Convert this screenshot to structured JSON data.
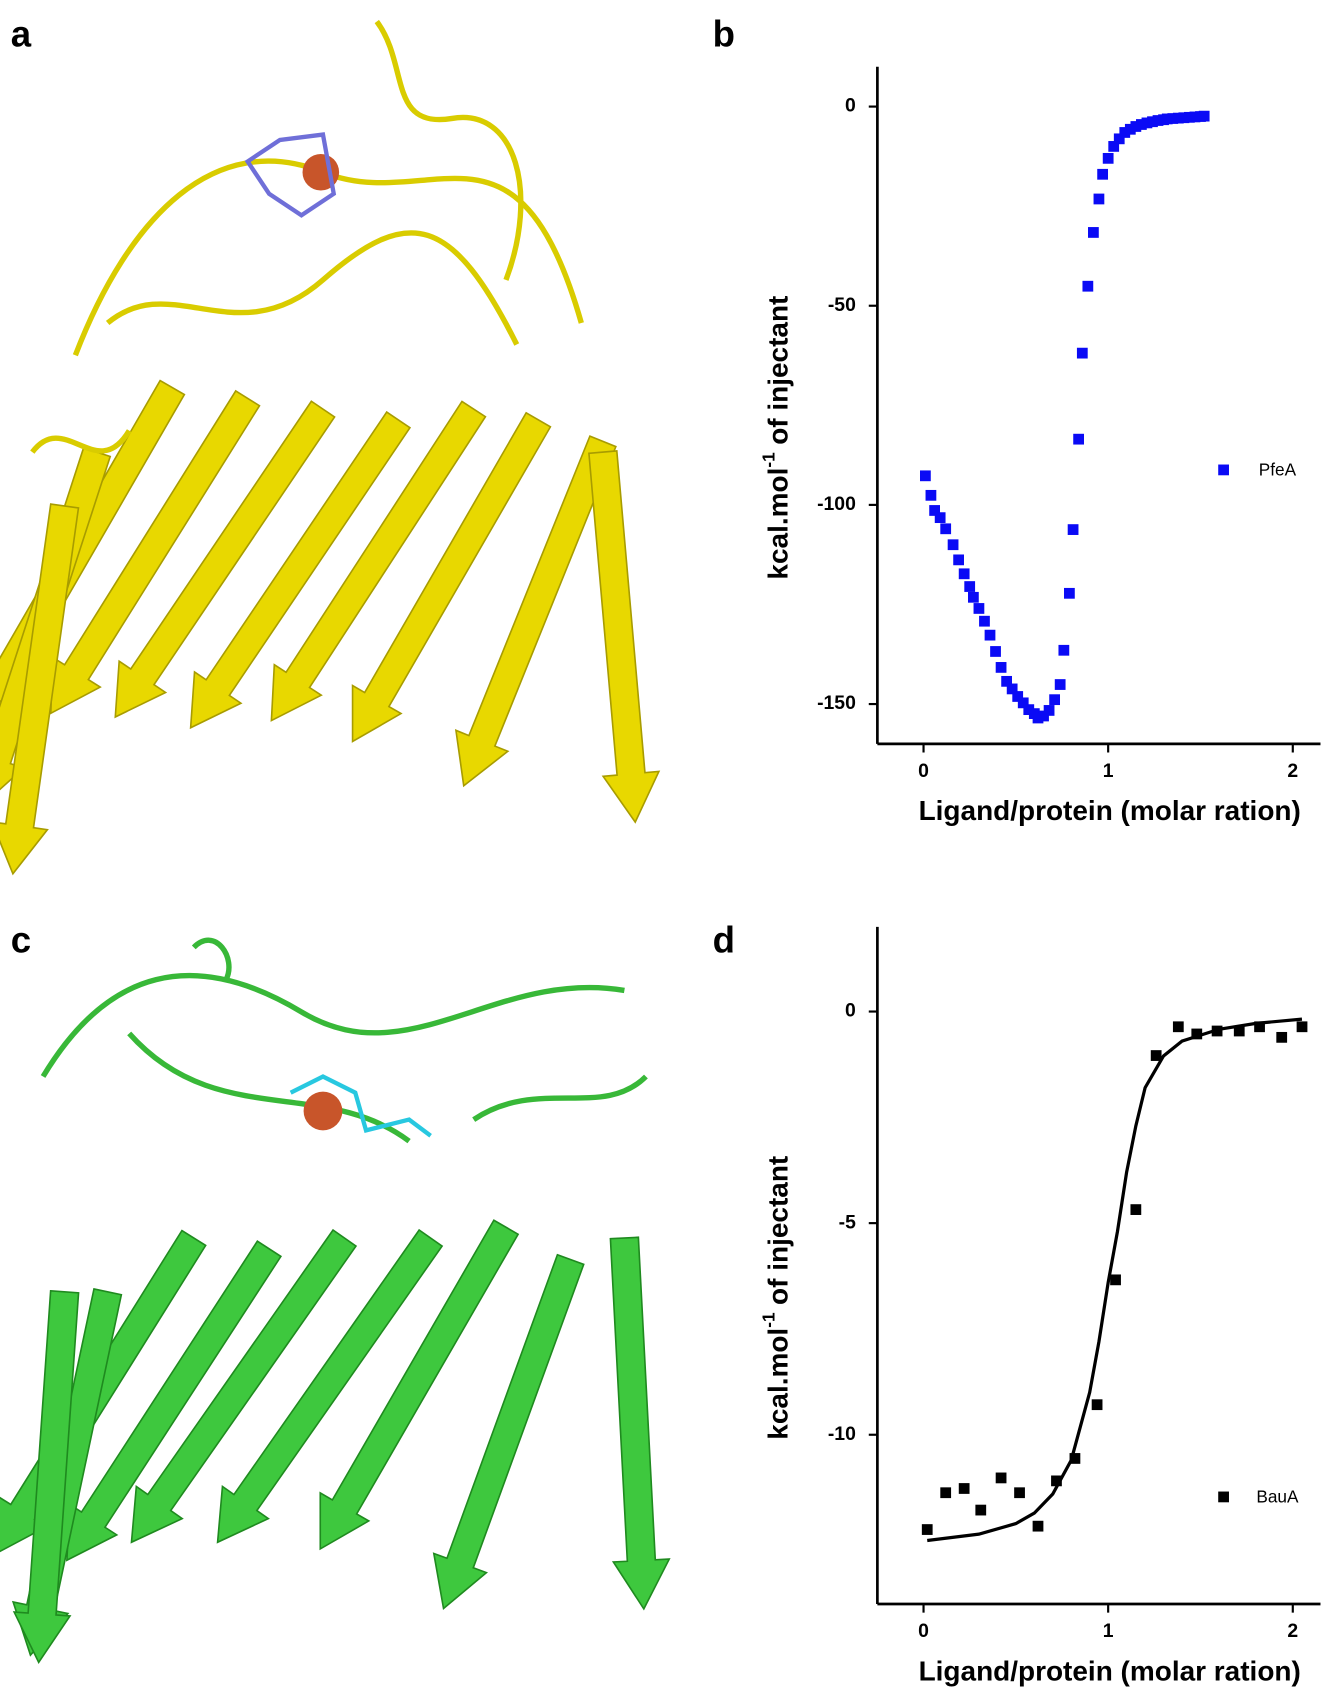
{
  "panels": [
    {
      "label": "a"
    },
    {
      "label": "b"
    },
    {
      "label": "c"
    },
    {
      "label": "d"
    }
  ],
  "chart_data": [
    {
      "type": "scatter",
      "xlabel": "Ligand/protein (molar ration)",
      "ylabel": {
        "text": "kcal.mol",
        "sup": "-1",
        "rest": "of injectant"
      },
      "xlim": [
        -0.25,
        2.15
      ],
      "xticks": [
        0,
        1,
        2
      ],
      "ylim": [
        -160,
        10
      ],
      "yticks": [
        0,
        -50,
        -100,
        -150
      ],
      "legend": "right",
      "series": [
        {
          "name": "PfeA",
          "color": "#0a0af5",
          "kind": "points",
          "x": [
            0.01,
            0.04,
            0.06,
            0.09,
            0.12,
            0.16,
            0.19,
            0.22,
            0.25,
            0.27,
            0.3,
            0.33,
            0.36,
            0.39,
            0.42,
            0.45,
            0.48,
            0.51,
            0.54,
            0.57,
            0.6,
            0.62,
            0.65,
            0.68,
            0.71,
            0.74,
            0.76,
            0.79,
            0.81,
            0.84,
            0.86,
            0.89,
            0.92,
            0.95,
            0.97,
            1.0,
            1.03,
            1.06,
            1.09,
            1.12,
            1.15,
            1.18,
            1.21,
            1.24,
            1.27,
            1.3,
            1.32,
            1.35,
            1.38,
            1.41,
            1.44,
            1.47,
            1.5,
            1.52
          ],
          "values": [
            -92.7,
            -97.6,
            -101.4,
            -103.2,
            -106,
            -110,
            -113.8,
            -117.3,
            -120.5,
            -123.2,
            -126,
            -129.2,
            -132.7,
            -136.8,
            -140.8,
            -144.3,
            -146.2,
            -148.1,
            -149.7,
            -151.4,
            -152.4,
            -153.5,
            -153,
            -151.6,
            -148.9,
            -145.1,
            -136.5,
            -122.2,
            -106.2,
            -83.5,
            -61.9,
            -45.1,
            -31.6,
            -23.2,
            -17,
            -13,
            -10,
            -8.1,
            -6.5,
            -5.7,
            -5,
            -4.5,
            -4.1,
            -3.8,
            -3.5,
            -3.3,
            -3.1,
            -3,
            -2.9,
            -2.8,
            -2.7,
            -2.6,
            -2.5,
            -2.4
          ]
        }
      ]
    },
    {
      "type": "scatter",
      "xlabel": "Ligand/protein (molar ration)",
      "ylabel": {
        "text": "kcal.mol",
        "sup": "-1",
        "rest": "of injectant"
      },
      "xlim": [
        -0.25,
        2.15
      ],
      "xticks": [
        0,
        1,
        2
      ],
      "ylim": [
        -14,
        2
      ],
      "yticks": [
        0,
        -5,
        -10
      ],
      "legend": "right",
      "series": [
        {
          "name": "BauA",
          "color": "#000000",
          "kind": "points",
          "x": [
            0.02,
            0.12,
            0.22,
            0.31,
            0.42,
            0.52,
            0.62,
            0.72,
            0.82,
            0.94,
            1.04,
            1.15,
            1.26,
            1.38,
            1.48,
            1.59,
            1.71,
            1.82,
            1.94,
            2.05
          ],
          "values": [
            -12.24,
            -11.37,
            -11.27,
            -11.78,
            -11.02,
            -11.37,
            -12.16,
            -11.09,
            -10.56,
            -9.29,
            -6.34,
            -4.68,
            -1.04,
            -0.36,
            -0.53,
            -0.46,
            -0.46,
            -0.36,
            -0.61,
            -0.36
          ]
        },
        {
          "color": "#000000",
          "kind": "line",
          "x": [
            0.02,
            0.3,
            0.5,
            0.6,
            0.7,
            0.8,
            0.9,
            0.95,
            1.0,
            1.05,
            1.1,
            1.15,
            1.2,
            1.3,
            1.4,
            1.6,
            1.8,
            2.05
          ],
          "values": [
            -12.5,
            -12.35,
            -12.1,
            -11.85,
            -11.4,
            -10.6,
            -9.0,
            -7.8,
            -6.4,
            -5.2,
            -3.8,
            -2.7,
            -1.8,
            -1.05,
            -0.7,
            -0.42,
            -0.28,
            -0.18
          ]
        }
      ]
    }
  ]
}
